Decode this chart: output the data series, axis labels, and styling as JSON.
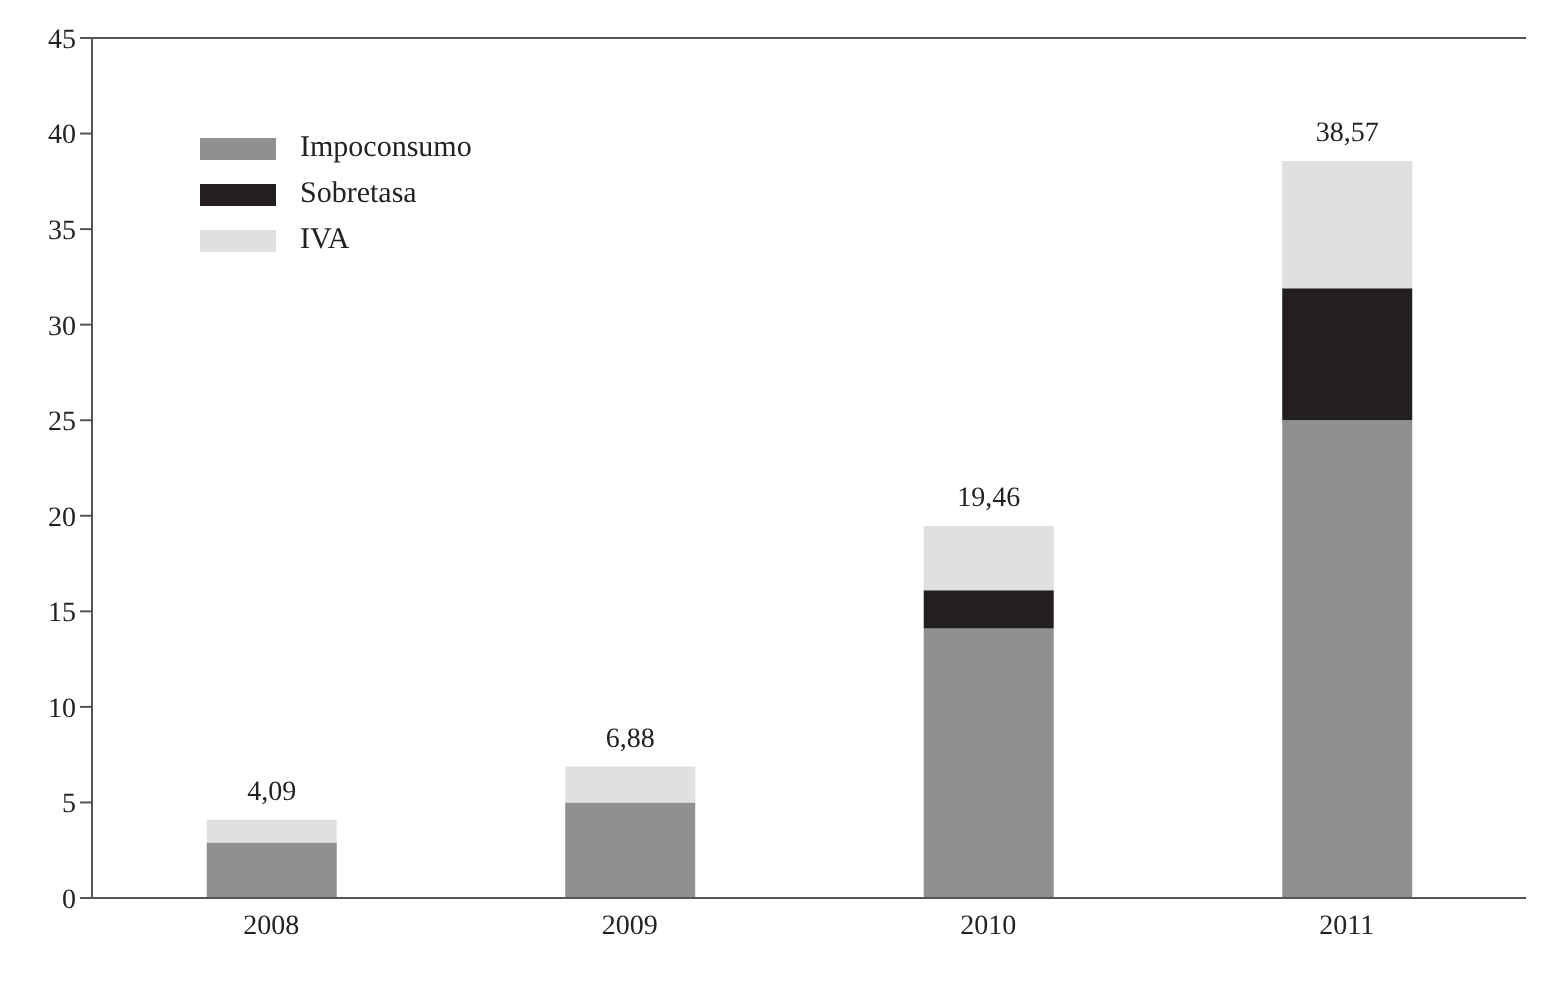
{
  "chart_data": {
    "type": "bar",
    "stacked": true,
    "categories": [
      "2008",
      "2009",
      "2010",
      "2011"
    ],
    "series": [
      {
        "name": "Impoconsumo",
        "color": "#8f9092",
        "values": [
          2.9,
          5.0,
          14.1,
          25.0
        ]
      },
      {
        "name": "Sobretasa",
        "color": "#231f20",
        "values": [
          0,
          0,
          2.0,
          6.9
        ]
      },
      {
        "name": "IVA",
        "color": "#dfe0e2",
        "values": [
          1.19,
          1.88,
          3.36,
          6.67
        ]
      }
    ],
    "totals": [
      "4,09",
      "6,88",
      "19,46",
      "38,57"
    ],
    "ylim": [
      0,
      45
    ],
    "yticks": [
      0,
      5,
      10,
      15,
      20,
      25,
      30,
      35,
      40,
      45
    ],
    "grid": false,
    "legend": "top left"
  }
}
